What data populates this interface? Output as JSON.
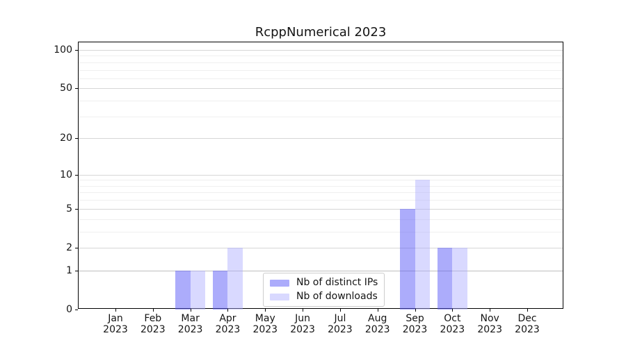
{
  "figure": {
    "title": "RcppNumerical 2023",
    "background": "#ffffff"
  },
  "chart_data": {
    "type": "bar",
    "title": "RcppNumerical 2023",
    "categories": [
      "Jan",
      "Feb",
      "Mar",
      "Apr",
      "May",
      "Jun",
      "Jul",
      "Aug",
      "Sep",
      "Oct",
      "Nov",
      "Dec"
    ],
    "year_label": "2023",
    "series": [
      {
        "name": "Nb of distinct IPs",
        "color": "rgba(90,90,247,0.50)",
        "values": [
          0,
          0,
          1,
          1,
          0,
          0,
          0,
          0,
          5,
          2,
          0,
          0
        ]
      },
      {
        "name": "Nb of downloads",
        "color": "rgba(170,170,255,0.45)",
        "values": [
          0,
          0,
          1,
          2,
          0,
          0,
          0,
          0,
          9,
          2,
          0,
          0
        ]
      }
    ],
    "xlabel": "",
    "ylabel": "",
    "yscale": "log1p",
    "ylim": [
      0,
      114.7
    ],
    "y_major_ticks": [
      0,
      1,
      2,
      5,
      10,
      20,
      50,
      100
    ],
    "y_minor_gridlines": [
      3,
      4,
      6,
      7,
      8,
      9,
      30,
      40,
      60,
      70,
      80,
      90
    ],
    "grid": true,
    "legend_position": "lower center"
  },
  "colors": {
    "grid_major": "#d6d6d6",
    "grid_minor": "#efefef",
    "grid_unit_line": "#bdbdbd",
    "spine": "#000000",
    "legend_border": "#cccccc",
    "bar_distinct_ips": "rgba(90,90,247,0.50)",
    "bar_downloads": "rgba(170,170,255,0.45)"
  }
}
